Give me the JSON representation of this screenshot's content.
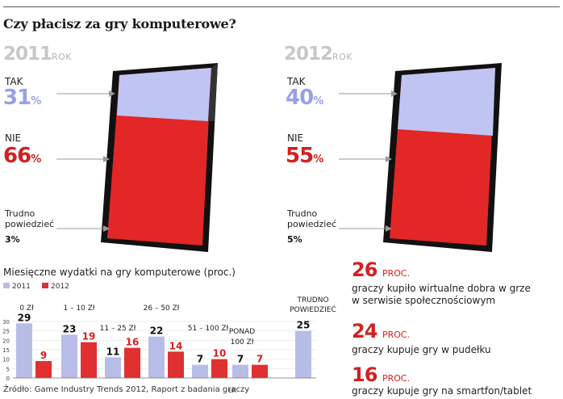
{
  "title": "Czy płacisz za gry komputerowe?",
  "panels": [
    {
      "year": "2011",
      "rok": "ROK",
      "tak_label": "TAK",
      "tak_value": "31",
      "nie_label": "NIE",
      "nie_value": "66",
      "pct": "%",
      "trudno": [
        "Trudno",
        "powiedzieć"
      ],
      "trudno_value": "3%"
    },
    {
      "year": "2012",
      "rok": "ROK",
      "tak_label": "TAK",
      "tak_value": "40",
      "nie_label": "NIE",
      "nie_value": "55",
      "pct": "%",
      "trudno": [
        "Trudno",
        "powiedzieć"
      ],
      "trudno_value": "5%"
    }
  ],
  "colors": {
    "tak_2011": "#c0c4f2",
    "tak_2012": "#c0c4f2",
    "nie": "#e32626",
    "tak_text": "#9aa0e6",
    "nie_text": "#d42020",
    "tablet": "#111111",
    "bar_2011": "#b8bde8",
    "bar_2012": "#e03030"
  },
  "chart_data": {
    "type": "bar",
    "title": "Miesięczne wydatki na gry komputerowe (proc.)",
    "categories": [
      "0 Zł",
      "1 – 10 Zł",
      "11 – 25 Zł",
      "26 – 50 Zł",
      "51 – 100 Zł",
      "PONAD 100 Zł",
      "TRUDNO POWIEDZIEĆ"
    ],
    "series": [
      {
        "name": "2011",
        "values": [
          29,
          23,
          11,
          22,
          7,
          7,
          25
        ]
      },
      {
        "name": "2012",
        "values": [
          9,
          19,
          16,
          14,
          10,
          7,
          null
        ]
      }
    ],
    "yticks": [
      "0",
      "5",
      "10",
      "15",
      "20",
      "25",
      "30"
    ],
    "ylim": [
      0,
      30
    ],
    "legend": "top-left"
  },
  "stats": [
    {
      "num": "26",
      "unit": "PROC.",
      "text": [
        "graczy kupiło wirtualne dobra w grze",
        "w serwisie społecznościowym"
      ]
    },
    {
      "num": "24",
      "unit": "PROC.",
      "text": [
        "graczy kupuje gry w pudełku"
      ]
    },
    {
      "num": "16",
      "unit": "PROC.",
      "text": [
        "graczy kupuje gry na smartfon/tablet"
      ]
    }
  ],
  "source": "Źródło: Game Industry Trends 2012, Raport z badania graczy",
  "author": "ŁR"
}
